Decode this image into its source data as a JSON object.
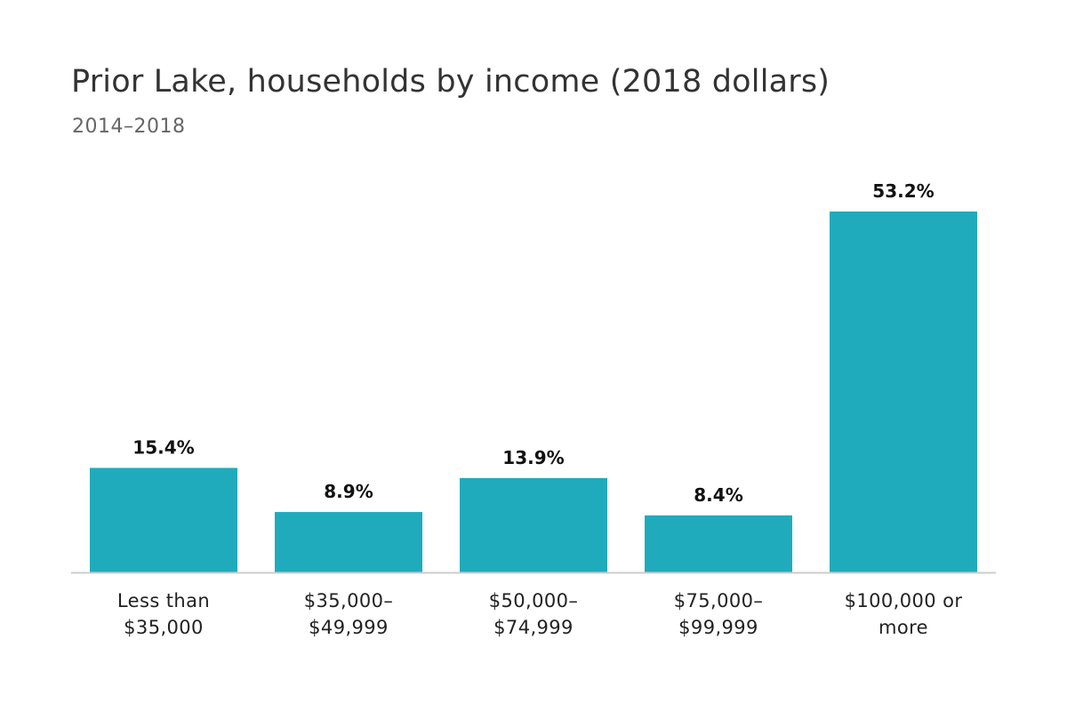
{
  "colors": {
    "bar": "#20abbc",
    "baseline": "#cccccc",
    "title": "#333333",
    "subtitle": "#666666"
  },
  "chart_data": {
    "type": "bar",
    "title": "Prior Lake, households by income (2018 dollars)",
    "subtitle": "2014–2018",
    "xlabel": "",
    "ylabel": "",
    "categories": [
      [
        "Less than",
        "$35,000"
      ],
      [
        "$35,000–",
        "$49,999"
      ],
      [
        "$50,000–",
        "$74,999"
      ],
      [
        "$75,000–",
        "$99,999"
      ],
      [
        "$100,000 or",
        "more"
      ]
    ],
    "values": [
      15.4,
      8.9,
      13.9,
      8.4,
      53.2
    ],
    "value_labels": [
      "15.4%",
      "8.9%",
      "13.9%",
      "8.4%",
      "53.2%"
    ],
    "ylim": [
      0,
      53.2
    ],
    "grid": false,
    "legend": "none"
  }
}
